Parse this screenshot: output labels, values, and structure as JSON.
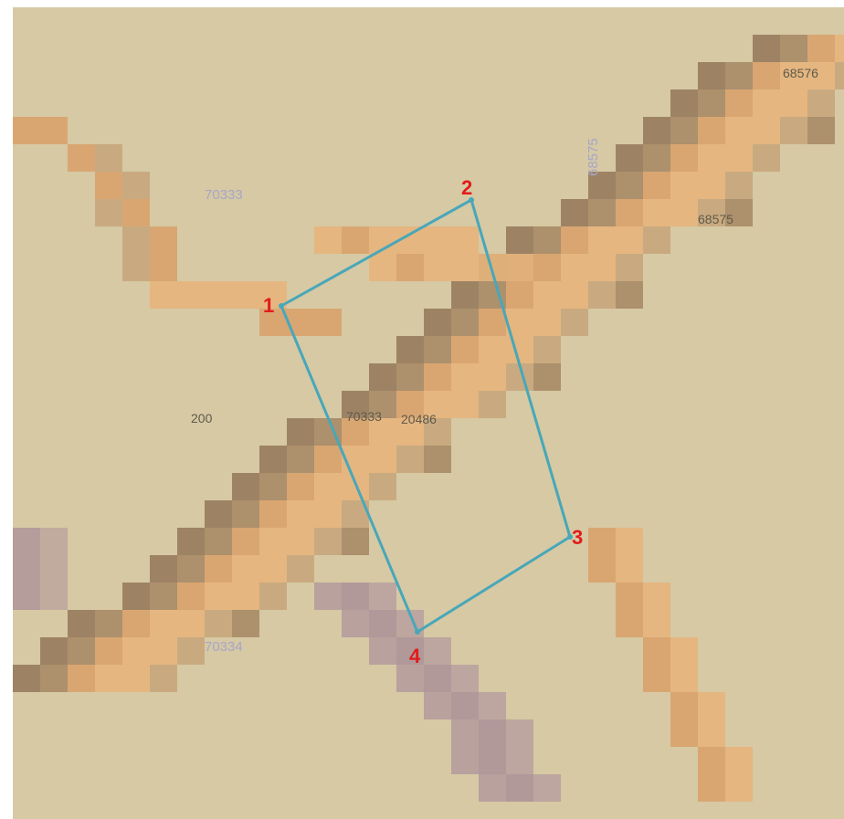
{
  "map": {
    "parcel_labels": [
      "68576",
      "68575",
      "70333",
      "20486",
      "200"
    ],
    "ghost_labels": [
      "70333",
      "68575",
      "70334"
    ],
    "vertex_labels": [
      "1",
      "2",
      "3",
      "4"
    ]
  },
  "colors": {
    "background": "#d6c9a4",
    "orange_light": "#e7b47c",
    "orange_mid": "#d9a26d",
    "tan": "#c8a67c",
    "brown": "#a98a66",
    "dark_brown": "#977b5d",
    "mauve": "#b2979c",
    "purple": "#a88d97",
    "boundary": "#48a7b9",
    "vertex_label": "#e21b1b",
    "parcel_text": "#5f5a4b",
    "ghost_text": "#a7a6c8"
  }
}
